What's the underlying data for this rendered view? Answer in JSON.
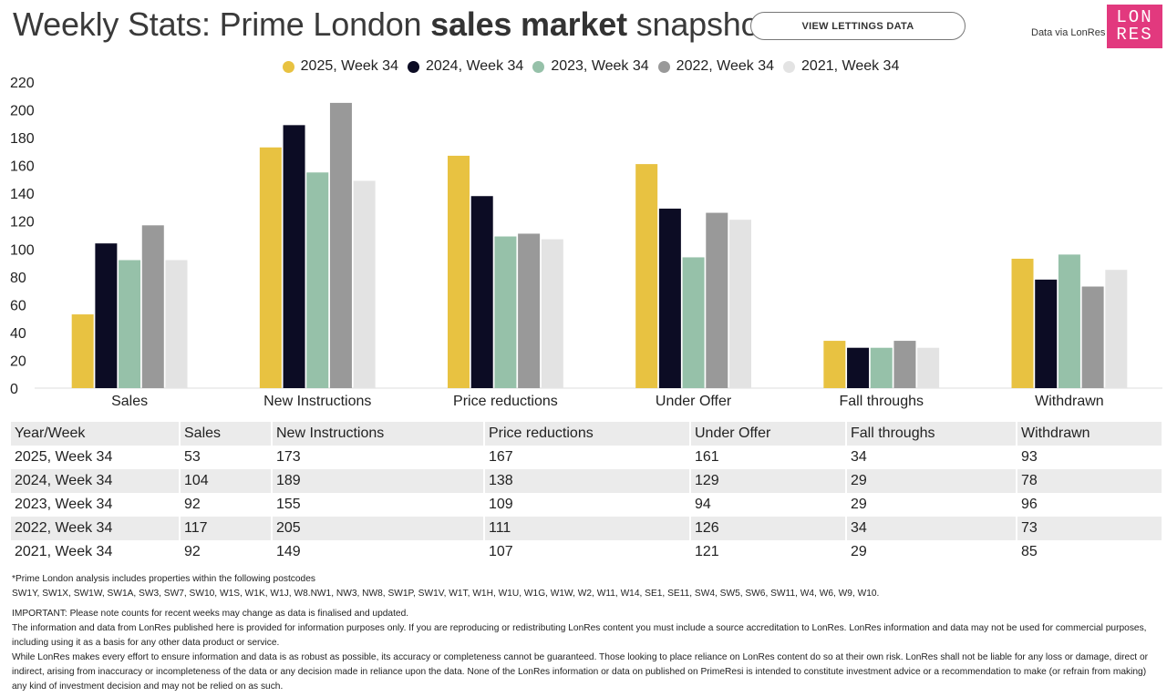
{
  "header": {
    "title_prefix": "Weekly Stats: Prime London ",
    "title_bold": "sales market",
    "title_suffix": " snapshot",
    "lettings_button_label": "VIEW LETTINGS DATA",
    "source_note": "Data via LonRes",
    "logo_line1": "LON",
    "logo_line2": "RES",
    "logo_color": "#e2397e"
  },
  "chart_data": {
    "type": "bar",
    "categories": [
      "Sales",
      "New Instructions",
      "Price reductions",
      "Under Offer",
      "Fall throughs",
      "Withdrawn"
    ],
    "series": [
      {
        "name": "2025, Week 34",
        "color": "#e8c241",
        "values": [
          53,
          173,
          167,
          161,
          34,
          93
        ]
      },
      {
        "name": "2024, Week 34",
        "color": "#0c0c24",
        "values": [
          104,
          189,
          138,
          129,
          29,
          78
        ]
      },
      {
        "name": "2023, Week 34",
        "color": "#96c1a9",
        "values": [
          92,
          155,
          109,
          94,
          29,
          96
        ]
      },
      {
        "name": "2022, Week 34",
        "color": "#999999",
        "values": [
          117,
          205,
          111,
          126,
          34,
          73
        ]
      },
      {
        "name": "2021, Week 34",
        "color": "#e3e3e3",
        "values": [
          92,
          149,
          107,
          121,
          29,
          85
        ]
      }
    ],
    "yticks": [
      "220",
      "200",
      "180",
      "160",
      "140",
      "120",
      "100",
      "80",
      "60",
      "40",
      "20",
      "0"
    ],
    "ylim": [
      0,
      220
    ],
    "legend_position": "top-center",
    "grid": false
  },
  "table": {
    "headers": [
      "Year/Week",
      "Sales",
      "New Instructions",
      "Price reductions",
      "Under Offer",
      "Fall throughs",
      "Withdrawn"
    ],
    "rows": [
      [
        "2025, Week 34",
        "53",
        "173",
        "167",
        "161",
        "34",
        "93"
      ],
      [
        "2024, Week 34",
        "104",
        "189",
        "138",
        "129",
        "29",
        "78"
      ],
      [
        "2023, Week 34",
        "92",
        "155",
        "109",
        "94",
        "29",
        "96"
      ],
      [
        "2022, Week 34",
        "117",
        "205",
        "111",
        "126",
        "34",
        "73"
      ],
      [
        "2021, Week 34",
        "92",
        "149",
        "107",
        "121",
        "29",
        "85"
      ]
    ]
  },
  "footnotes": {
    "line1": "*Prime London analysis includes properties within the following postcodes",
    "line2": "SW1Y, SW1X, SW1W, SW1A, SW3, SW7, SW10, W1S, W1K, W1J, W8.NW1, NW3, NW8, SW1P, SW1V, W1T, W1H, W1U, W1G, W1W, W2, W11, W14, SE1, SE11, SW4, SW5, SW6, SW11, W4, W6, W9, W10.",
    "line3": "IMPORTANT: Please note counts for recent weeks may change as data is finalised and updated.",
    "line4": "The information and data from LonRes published here is provided for information purposes only. If you are reproducing or redistributing LonRes content you must include a source accreditation to LonRes. LonRes information and data may not be used for commercial purposes, including using it as a basis for any other data product or service.",
    "line5": "While LonRes makes every effort to ensure information and data is as robust as possible, its accuracy or completeness cannot be guaranteed. Those looking to place reliance on LonRes content do so at their own risk. LonRes shall not be liable for any loss or damage, direct or indirect, arising from inaccuracy or incompleteness of the data or any decision made in reliance upon the data. None of the LonRes information or data on published on PrimeResi is intended to constitute investment advice or a recommendation to make (or refrain from making) any kind of investment decision and may not be relied on as such."
  }
}
